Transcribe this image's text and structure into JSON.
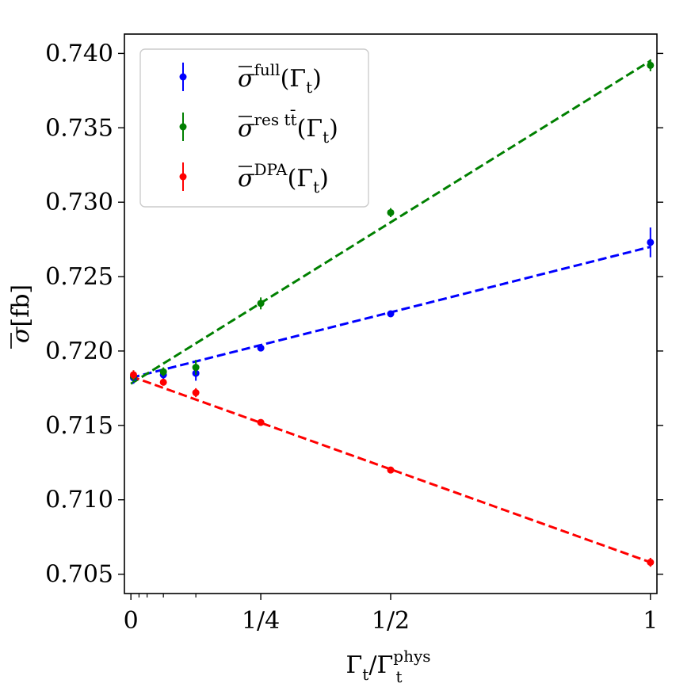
{
  "chart_data": {
    "type": "scatter",
    "title": "",
    "xlabel": {
      "base": "Γ",
      "sub": "t",
      "sep": "/",
      "base2": "Γ",
      "sub2": "t",
      "sup2": "phys"
    },
    "ylabel": {
      "base": "σ",
      "rest": "[fb]"
    },
    "xlim": [
      -0.0125,
      1.0125
    ],
    "ylim": [
      0.7037,
      0.7413
    ],
    "x_ticks": [
      {
        "value": 0,
        "label": "0"
      },
      {
        "value": 0.25,
        "label": "1/4"
      },
      {
        "value": 0.5,
        "label": "1/2"
      },
      {
        "value": 1,
        "label": "1"
      }
    ],
    "x_minor_ticks": [
      0.015625,
      0.03125,
      0.0625,
      0.125
    ],
    "y_ticks": [
      {
        "value": 0.705,
        "label": "0.705"
      },
      {
        "value": 0.71,
        "label": "0.710"
      },
      {
        "value": 0.715,
        "label": "0.715"
      },
      {
        "value": 0.72,
        "label": "0.720"
      },
      {
        "value": 0.725,
        "label": "0.725"
      },
      {
        "value": 0.73,
        "label": "0.730"
      },
      {
        "value": 0.735,
        "label": "0.735"
      },
      {
        "value": 0.74,
        "label": "0.740"
      }
    ],
    "grid": false,
    "legend_position": "top-left",
    "series": [
      {
        "sup": "full",
        "color": "#0000ff",
        "points": [
          {
            "x": 0.005,
            "y": 0.7182,
            "err": 0.0004
          },
          {
            "x": 0.0625,
            "y": 0.7184,
            "err": 0.0003
          },
          {
            "x": 0.125,
            "y": 0.7185,
            "err": 0.0005
          },
          {
            "x": 0.25,
            "y": 0.7202,
            "err": 0.0002
          },
          {
            "x": 0.5,
            "y": 0.7225,
            "err": 0.0002
          },
          {
            "x": 1.0,
            "y": 0.7273,
            "err": 0.001
          }
        ],
        "fit": {
          "intercept": 0.7182,
          "slope": 0.0088
        }
      },
      {
        "sup": "res tt̄",
        "color": "#008000",
        "points": [
          {
            "x": 0.005,
            "y": 0.7183,
            "err": 0.0004
          },
          {
            "x": 0.0625,
            "y": 0.7186,
            "err": 0.0003
          },
          {
            "x": 0.125,
            "y": 0.7189,
            "err": 0.0005
          },
          {
            "x": 0.25,
            "y": 0.7232,
            "err": 0.0004
          },
          {
            "x": 0.5,
            "y": 0.7293,
            "err": 0.0003
          },
          {
            "x": 1.0,
            "y": 0.7392,
            "err": 0.0004
          }
        ],
        "fit": {
          "intercept": 0.7178,
          "slope": 0.0217
        }
      },
      {
        "sup": "DPA",
        "color": "#ff0000",
        "points": [
          {
            "x": 0.005,
            "y": 0.7184,
            "err": 0.0003
          },
          {
            "x": 0.0625,
            "y": 0.7179,
            "err": 0.0002
          },
          {
            "x": 0.125,
            "y": 0.7172,
            "err": 0.0003
          },
          {
            "x": 0.25,
            "y": 0.7152,
            "err": 0.0002
          },
          {
            "x": 0.5,
            "y": 0.712,
            "err": 0.0002
          },
          {
            "x": 1.0,
            "y": 0.7058,
            "err": 0.0003
          }
        ],
        "fit": {
          "intercept": 0.7183,
          "slope": -0.0125
        }
      }
    ],
    "legend_template": {
      "base": "σ",
      "arg": "(Γ",
      "arg_sub": "t",
      "close": ")"
    }
  }
}
